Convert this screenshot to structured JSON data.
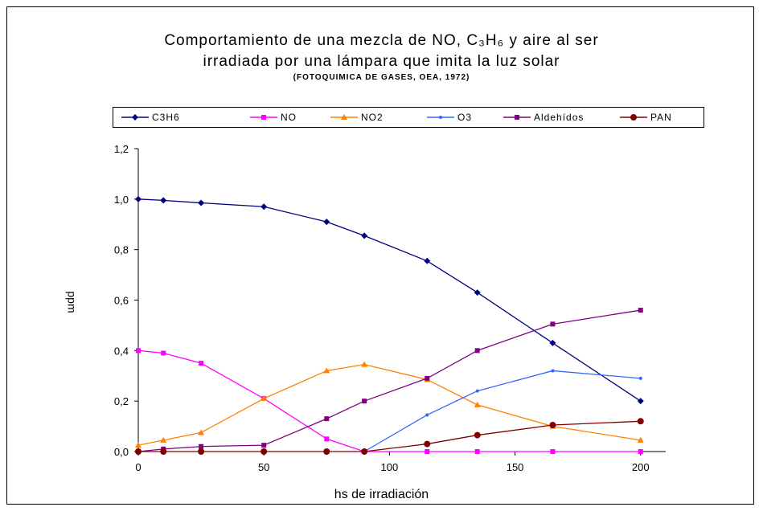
{
  "chart_data": {
    "type": "line",
    "title_line1": "Comportamiento de una mezcla de NO, C₃H₆ y aire al ser",
    "title_line2": "irradiada por una lámpara que imita la luz solar",
    "subtitle": "(FOTOQUIMICA DE GASES, OEA, 1972)",
    "xlabel": "hs de irradiación",
    "ylabel": "ppm",
    "xlim": [
      0,
      210
    ],
    "ylim": [
      0,
      1.2
    ],
    "x_ticks": [
      "0",
      "50",
      "100",
      "150",
      "200"
    ],
    "y_ticks": [
      "0,0",
      "0,2",
      "0,4",
      "0,6",
      "0,8",
      "1,0",
      "1,2"
    ],
    "legend_position": "top",
    "grid": false,
    "series": [
      {
        "name": "C3H6",
        "color": "#000080",
        "marker": "diamond",
        "x": [
          0,
          10,
          25,
          50,
          75,
          90,
          115,
          135,
          165,
          200
        ],
        "y": [
          1.0,
          0.995,
          0.985,
          0.97,
          0.91,
          0.855,
          0.755,
          0.63,
          0.43,
          0.2
        ]
      },
      {
        "name": "NO",
        "color": "#ff00ff",
        "marker": "square",
        "x": [
          0,
          10,
          25,
          50,
          75,
          90,
          115,
          135,
          165,
          200
        ],
        "y": [
          0.4,
          0.39,
          0.35,
          0.21,
          0.05,
          0.0,
          0.0,
          0.0,
          0.0,
          0.0
        ]
      },
      {
        "name": "NO2",
        "color": "#ff8000",
        "marker": "triangle",
        "x": [
          0,
          10,
          25,
          50,
          75,
          90,
          115,
          135,
          165,
          200
        ],
        "y": [
          0.025,
          0.045,
          0.075,
          0.21,
          0.32,
          0.345,
          0.285,
          0.185,
          0.1,
          0.045
        ]
      },
      {
        "name": "O3",
        "color": "#3366ff",
        "marker": "x",
        "x": [
          90,
          115,
          135,
          165,
          200
        ],
        "y": [
          0.0,
          0.145,
          0.24,
          0.32,
          0.29
        ]
      },
      {
        "name": "Aldehídos",
        "color": "#800080",
        "marker": "square",
        "x": [
          0,
          10,
          25,
          50,
          75,
          90,
          115,
          135,
          165,
          200
        ],
        "y": [
          0.0,
          0.01,
          0.02,
          0.025,
          0.13,
          0.2,
          0.29,
          0.4,
          0.505,
          0.56
        ]
      },
      {
        "name": "PAN",
        "color": "#800000",
        "marker": "circle",
        "x": [
          0,
          10,
          25,
          50,
          75,
          90,
          115,
          135,
          165,
          200
        ],
        "y": [
          0.0,
          0.0,
          0.0,
          0.0,
          0.0,
          0.0,
          0.03,
          0.065,
          0.105,
          0.12
        ]
      }
    ]
  }
}
